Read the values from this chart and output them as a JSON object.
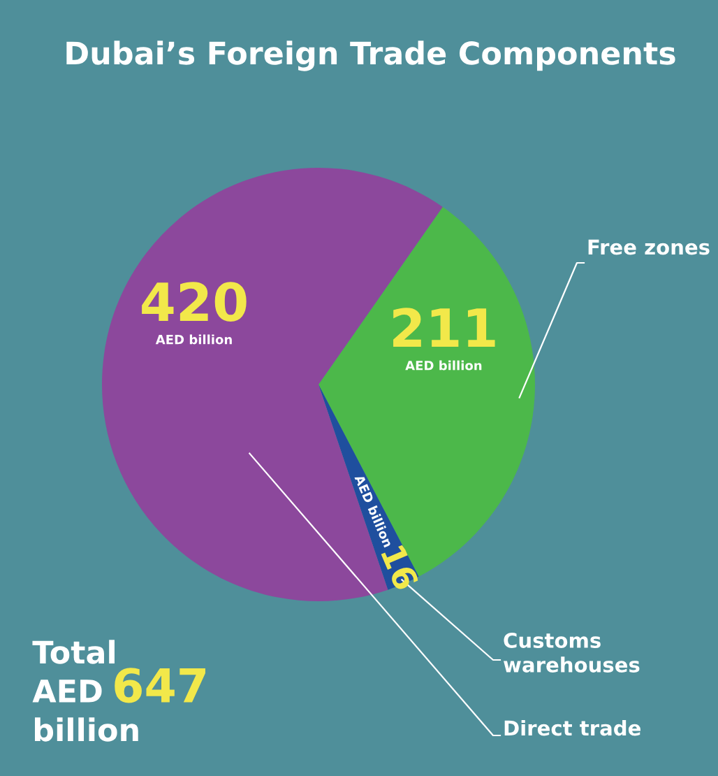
{
  "chart_data": {
    "type": "pie",
    "title": "Dubai’s Foreign Trade Components",
    "categories": [
      "Free zones",
      "Customs warehouses",
      "Direct trade"
    ],
    "values": [
      211,
      16,
      420
    ],
    "colors": [
      "#4cb84a",
      "#1f4f9e",
      "#8c489c"
    ],
    "value_labels": [
      "211 AED billion",
      "16 AED billion",
      "420 AED billion"
    ],
    "annotations": [
      "Total AED 647 billion"
    ],
    "legend": false
  }
}
